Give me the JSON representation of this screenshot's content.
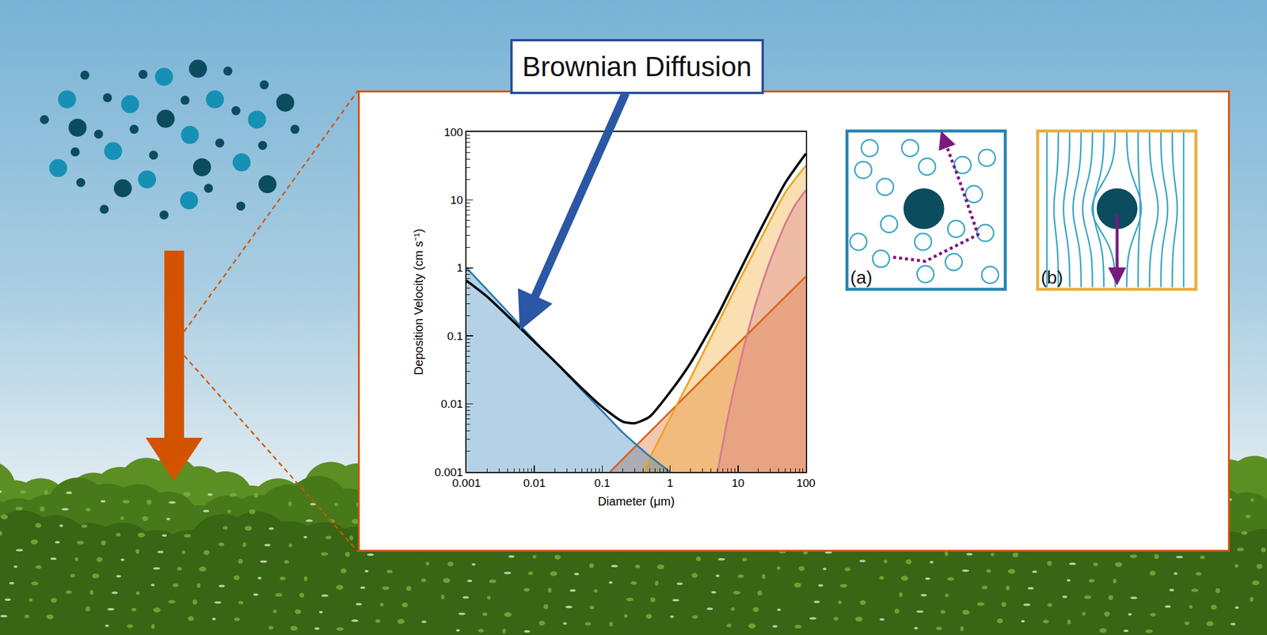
{
  "chart_data": {
    "type": "line",
    "xlabel": "Diameter (μm)",
    "ylabel": "Deposition Velocity (cm s⁻¹)",
    "log": true,
    "grid": false,
    "xlim": [
      0.001,
      100
    ],
    "ylim": [
      0.001,
      100
    ],
    "xticks": [
      0.001,
      0.01,
      0.1,
      1,
      10,
      100
    ],
    "yticks": [
      0.001,
      0.01,
      0.1,
      1,
      10,
      100
    ],
    "series": [
      {
        "type": "area",
        "color": "#d9621c",
        "x": [
          0.13,
          1,
          10,
          100
        ],
        "values": [
          0.001,
          0.0077,
          0.077,
          0.75
        ]
      },
      {
        "type": "area",
        "color": "#eea320",
        "x": [
          0.4,
          0.5,
          1,
          2,
          5,
          10,
          20,
          50,
          100
        ],
        "values": [
          0.001,
          0.0016,
          0.0062,
          0.024,
          0.15,
          0.6,
          2.3,
          13,
          32
        ]
      },
      {
        "type": "area",
        "color": "#d9788f",
        "x": [
          5,
          7,
          10,
          15,
          20,
          30,
          50,
          70,
          100
        ],
        "values": [
          0.001,
          0.006,
          0.03,
          0.15,
          0.4,
          1.3,
          4.5,
          8.5,
          14
        ]
      },
      {
        "type": "area",
        "color": "#2a7ab8",
        "x": [
          0.001,
          0.002,
          0.005,
          0.01,
          0.02,
          0.05,
          0.1,
          0.2,
          0.5,
          1
        ],
        "values": [
          1.0,
          0.48,
          0.18,
          0.085,
          0.042,
          0.016,
          0.0078,
          0.0038,
          0.0017,
          0.001
        ]
      },
      {
        "type": "line",
        "color": "#000000",
        "x": [
          0.001,
          0.002,
          0.005,
          0.01,
          0.02,
          0.05,
          0.1,
          0.2,
          0.3,
          0.5,
          1,
          2,
          5,
          10,
          20,
          50,
          100
        ],
        "values": [
          0.65,
          0.38,
          0.16,
          0.082,
          0.042,
          0.017,
          0.009,
          0.0055,
          0.0052,
          0.0065,
          0.015,
          0.04,
          0.2,
          0.8,
          3.2,
          18,
          48
        ]
      }
    ],
    "annotations": [
      {
        "text": "Brownian Diffusion",
        "x": 0.0061,
        "y": 0.12
      }
    ]
  },
  "panels": [
    {
      "label": "(a)"
    },
    {
      "label": "(b)"
    }
  ]
}
